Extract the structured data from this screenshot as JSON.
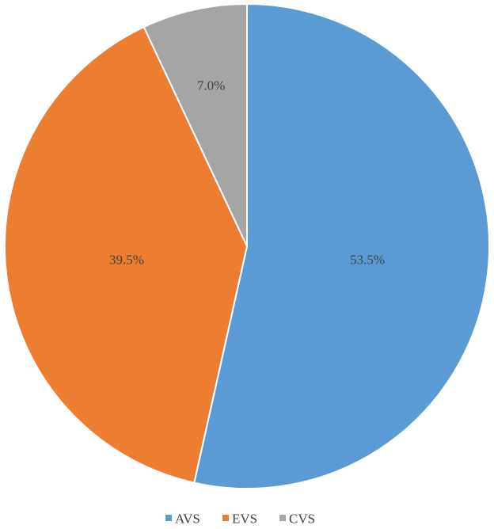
{
  "chart_data": {
    "type": "pie",
    "categories": [
      "AVS",
      "EVS",
      "CVS"
    ],
    "values": [
      53.5,
      39.5,
      7.0
    ],
    "data_labels": [
      "53.5%",
      "39.5%",
      "7.0%"
    ],
    "colors": [
      "#5B9BD5",
      "#ED7D31",
      "#A5A5A5"
    ],
    "start_angle": "12 o'clock",
    "direction": "clockwise",
    "legend_position": "bottom",
    "title": ""
  }
}
